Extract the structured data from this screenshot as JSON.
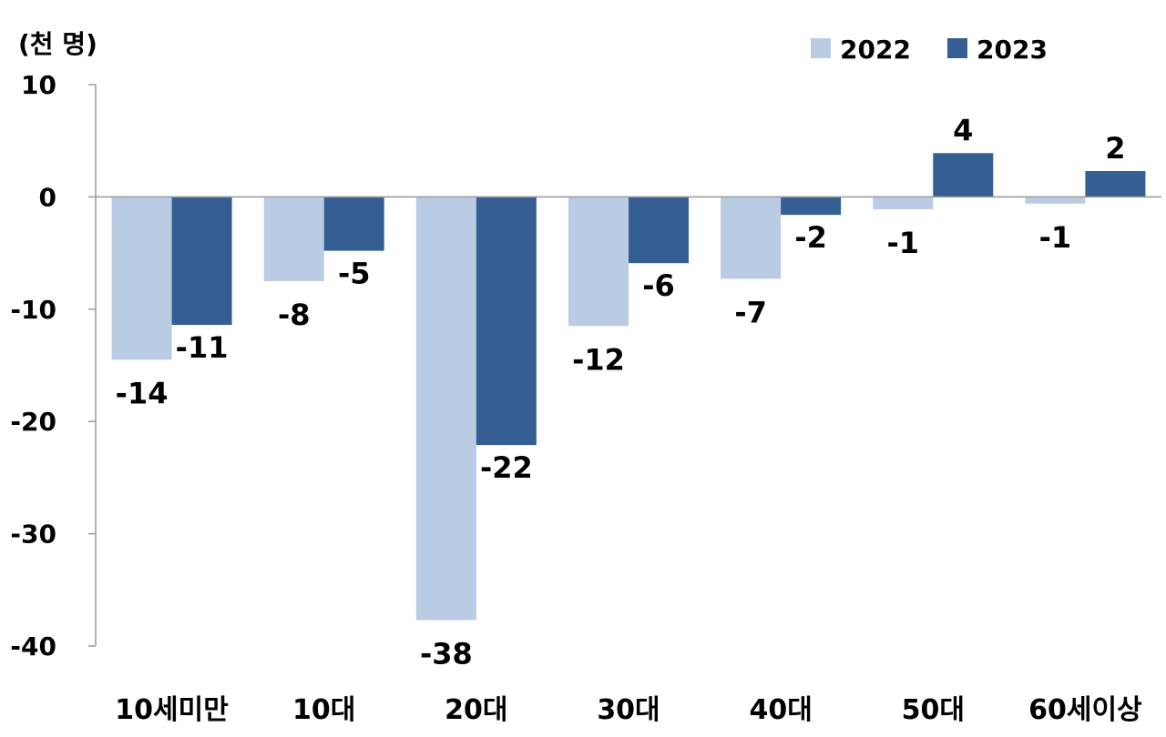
{
  "chart_data": {
    "type": "bar",
    "unit_label": "(천 명)",
    "categories": [
      "10세미만",
      "10대",
      "20대",
      "30대",
      "40대",
      "50대",
      "60세이상"
    ],
    "series": [
      {
        "name": "2022",
        "color": "#b9cce4",
        "values": [
          -14.5,
          -7.5,
          -37.7,
          -11.5,
          -7.3,
          -1.1,
          -0.6
        ],
        "labels": [
          "-14",
          "-8",
          "-38",
          "-12",
          "-7",
          "-1",
          "-1"
        ]
      },
      {
        "name": "2023",
        "color": "#355e93",
        "values": [
          -11.4,
          -4.8,
          -22.1,
          -5.9,
          -1.6,
          3.9,
          2.3
        ],
        "labels": [
          "-11",
          "-5",
          "-22",
          "-6",
          "-2",
          "4",
          "2"
        ]
      }
    ],
    "yticks": [
      10,
      0,
      -10,
      -20,
      -30,
      -40
    ],
    "ylim": [
      -40,
      10
    ],
    "grid": false,
    "legend": "top-right"
  }
}
